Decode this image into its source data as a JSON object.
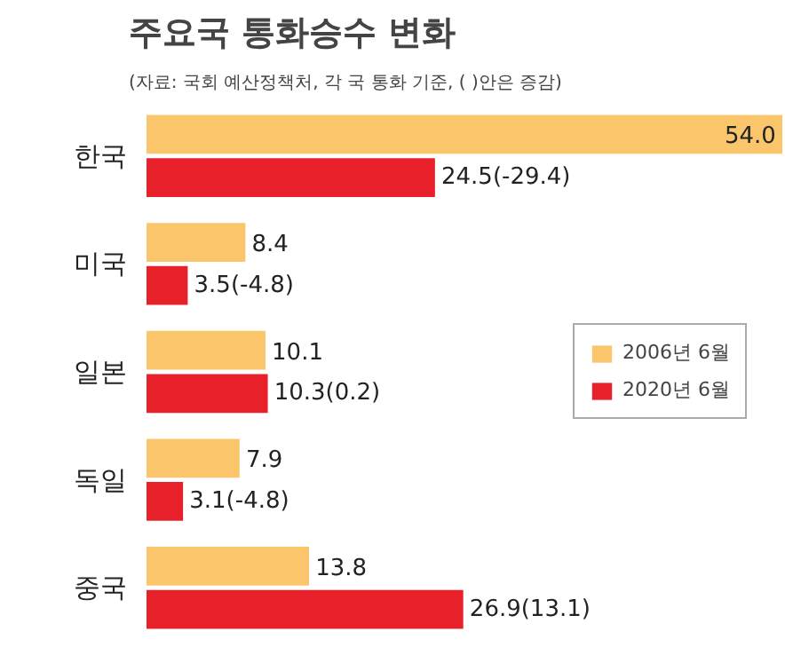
{
  "chart_data": {
    "type": "bar",
    "orientation": "horizontal",
    "title": "주요국 통화승수 변화",
    "subtitle": "(자료: 국회 예산정책처, 각 국 통화 기준, ( )안은 증감)",
    "categories": [
      "한국",
      "미국",
      "일본",
      "독일",
      "중국"
    ],
    "series": [
      {
        "name": "2006년 6월",
        "color": "#fbc56b",
        "values": [
          54.0,
          8.4,
          10.1,
          7.9,
          13.8
        ],
        "value_labels": [
          "54.0",
          "8.4",
          "10.1",
          "7.9",
          "13.8"
        ]
      },
      {
        "name": "2020년 6월",
        "color": "#e8202a",
        "values": [
          24.5,
          3.5,
          10.3,
          3.1,
          26.9
        ],
        "value_labels": [
          "24.5(-29.4)",
          "3.5(-4.8)",
          "10.3(0.2)",
          "3.1(-4.8)",
          "26.9(13.1)"
        ]
      }
    ],
    "legend": "right",
    "grid": false
  }
}
